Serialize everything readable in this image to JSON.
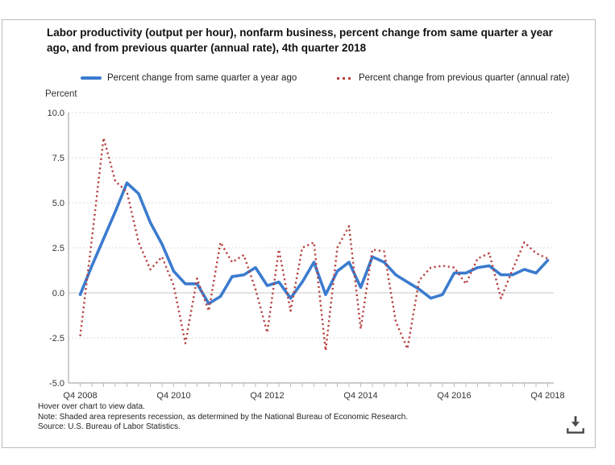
{
  "header": {
    "title": "Labor productivity (output per hour), nonfarm business, percent change from same quarter a year ago, and from previous quarter (annual rate), 4th quarter 2018"
  },
  "legend": {
    "items": [
      {
        "label": "Percent change from same quarter a year ago",
        "marker": "solid-line",
        "color": "#3b7bce"
      },
      {
        "label": "Percent change from previous quarter (annual rate)",
        "marker": "dotted-line",
        "color": "#b5403e"
      }
    ]
  },
  "footnotes": {
    "lines": [
      "Hover over chart to view data.",
      "Note: Shaded area represents recession, as determined by the National Bureau of Economic Research.",
      "Source: U.S. Bureau of Labor Statistics."
    ]
  },
  "icons": {
    "download": "download-icon"
  },
  "colors": {
    "series_yoy": "#3b7bce",
    "series_qoq": "#b5403e",
    "axis": "#9a9a9a",
    "gridline": "#cfcfcf",
    "zero_line": "#c8c8c8",
    "quarter_tick": "#b3bdc9",
    "tick_text": "#333333",
    "icon": "#4a4a4a"
  },
  "chart_data": {
    "type": "line",
    "title": "Labor productivity (output per hour), nonfarm business, percent change from same quarter a year ago, and from previous quarter (annual rate), 4th quarter 2018",
    "ylabel": "Percent",
    "xlabel": "",
    "ylim": [
      -5.0,
      10.0
    ],
    "ytick_labels": [
      "10.0",
      "7.5",
      "5.0",
      "2.5",
      "0.0",
      "-2.5",
      "-5.0"
    ],
    "grid": "horizontal dotted, solid zero line",
    "legend_position": "top",
    "x_axis": {
      "unit": "quarter",
      "start": "Q4 2008",
      "end": "Q4 2018",
      "major_tick_labels": [
        "Q4 2008",
        "Q4 2010",
        "Q4 2012",
        "Q4 2014",
        "Q4 2016",
        "Q4 2018"
      ],
      "major_tick_indices": [
        0,
        8,
        16,
        24,
        32,
        40
      ]
    },
    "categories": [
      "Q4 2008",
      "Q1 2009",
      "Q2 2009",
      "Q3 2009",
      "Q4 2009",
      "Q1 2010",
      "Q2 2010",
      "Q3 2010",
      "Q4 2010",
      "Q1 2011",
      "Q2 2011",
      "Q3 2011",
      "Q4 2011",
      "Q1 2012",
      "Q2 2012",
      "Q3 2012",
      "Q4 2012",
      "Q1 2013",
      "Q2 2013",
      "Q3 2013",
      "Q4 2013",
      "Q1 2014",
      "Q2 2014",
      "Q3 2014",
      "Q4 2014",
      "Q1 2015",
      "Q2 2015",
      "Q3 2015",
      "Q4 2015",
      "Q1 2016",
      "Q2 2016",
      "Q3 2016",
      "Q4 2016",
      "Q1 2017",
      "Q2 2017",
      "Q3 2017",
      "Q4 2017",
      "Q1 2018",
      "Q2 2018",
      "Q3 2018",
      "Q4 2018"
    ],
    "series": [
      {
        "name": "Percent change from same quarter a year ago",
        "style": "solid",
        "color": "#3b7bce",
        "values": [
          -0.1,
          1.5,
          3.0,
          4.5,
          6.1,
          5.5,
          3.9,
          2.7,
          1.2,
          0.5,
          0.5,
          -0.6,
          -0.2,
          0.9,
          1.0,
          1.4,
          0.4,
          0.6,
          -0.3,
          0.6,
          1.7,
          -0.1,
          1.2,
          1.7,
          0.3,
          2.0,
          1.7,
          1.0,
          0.6,
          0.2,
          -0.3,
          -0.1,
          1.1,
          1.1,
          1.4,
          1.5,
          1.0,
          1.0,
          1.3,
          1.1,
          1.8
        ]
      },
      {
        "name": "Percent change from previous quarter (annual rate)",
        "style": "dotted",
        "color": "#b5403e",
        "values": [
          -2.4,
          3.0,
          8.6,
          6.2,
          5.6,
          2.8,
          1.3,
          2.0,
          0.4,
          -2.8,
          0.8,
          -1.0,
          2.8,
          1.7,
          2.1,
          0.2,
          -2.2,
          2.4,
          -1.0,
          2.5,
          2.8,
          -3.2,
          2.5,
          3.7,
          -2.0,
          2.4,
          2.3,
          -1.6,
          -3.1,
          0.7,
          1.4,
          1.5,
          1.4,
          0.5,
          1.9,
          2.2,
          -0.3,
          1.3,
          2.8,
          2.2,
          1.9
        ]
      }
    ]
  }
}
